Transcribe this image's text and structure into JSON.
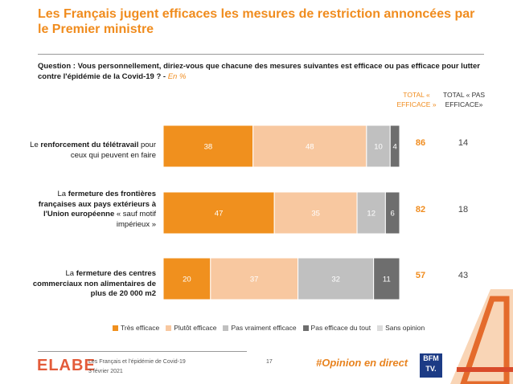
{
  "title": "Les Français jugent efficaces les mesures de restriction annoncées par le Premier ministre",
  "question": {
    "text": "Question : Vous personnellement, diriez-vous que chacune des mesures suivantes est efficace ou pas efficace pour lutter contre l'épidémie de la Covid-19 ? - ",
    "note": "En %"
  },
  "columns": {
    "favorable": "TOTAL « EFFICACE »",
    "unfavorable": "TOTAL « PAS EFFICACE»"
  },
  "rows": [
    {
      "pre": "Le ",
      "bold": "renforcement du télétravail",
      "post": " pour ceux qui peuvent en faire",
      "total_eff": "86",
      "total_pas": "14"
    },
    {
      "pre": "La ",
      "bold": "fermeture des frontières françaises aux pays extérieurs à l'Union européenne",
      "post": " « sauf motif impérieux »",
      "total_eff": "82",
      "total_pas": "18"
    },
    {
      "pre": "La ",
      "bold": "fermeture des centres commerciaux non alimentaires de plus de 20 000 m2",
      "post": "",
      "total_eff": "57",
      "total_pas": "43"
    }
  ],
  "chart_data": {
    "type": "bar",
    "orientation": "horizontal",
    "stacked": true,
    "categories": [
      "Le renforcement du télétravail pour ceux qui peuvent en faire",
      "La fermeture des frontières françaises aux pays extérieurs à l'Union européenne « sauf motif impérieux »",
      "La fermeture des centres commerciaux non alimentaires de plus de 20 000 m2"
    ],
    "series": [
      {
        "name": "Très efficace",
        "values": [
          38,
          47,
          20
        ],
        "color": "#f0901e",
        "label_color": "#ffffff"
      },
      {
        "name": "Plutôt efficace",
        "values": [
          48,
          35,
          37
        ],
        "color": "#f8c8a0",
        "label_color": "#ffffff"
      },
      {
        "name": "Pas vraiment efficace",
        "values": [
          10,
          12,
          32
        ],
        "color": "#c0c0c0",
        "label_color": "#ffffff"
      },
      {
        "name": "Pas efficace du tout",
        "values": [
          4,
          6,
          11
        ],
        "color": "#6e6e6e",
        "label_color": "#ffffff"
      },
      {
        "name": "Sans opinion",
        "values": [
          0,
          0,
          0
        ],
        "color": "#dcdcdc",
        "label_color": "#ffffff"
      }
    ],
    "xlim": [
      0,
      100
    ],
    "legend_position": "bottom"
  },
  "footer": {
    "logo": "ELABE",
    "line1": "Les Français et l'épidémie de Covid-19",
    "line2": "3 février 2021",
    "page": "17",
    "hashtag": "#Opinion en direct",
    "bfm_top": "BFM",
    "bfm_bottom": "TV."
  }
}
